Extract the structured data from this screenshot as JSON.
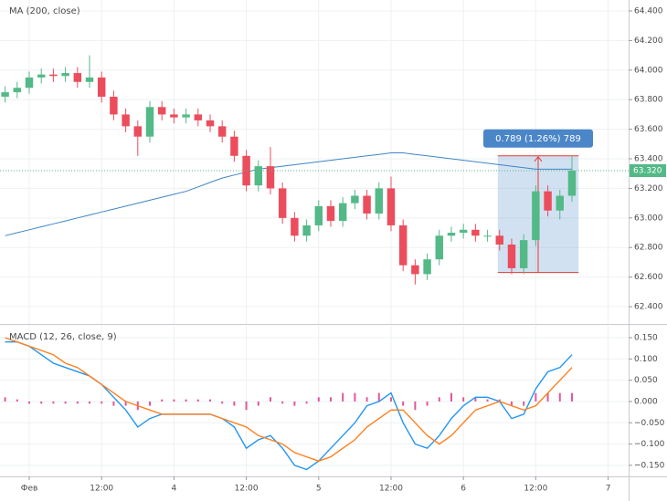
{
  "chart_data": [
    {
      "type": "candlestick",
      "title": "MA (200, close)",
      "x": [
        -4,
        -2,
        0,
        2,
        4,
        6,
        8,
        10,
        12,
        14,
        16,
        18,
        20,
        22,
        24,
        26,
        28,
        30,
        32,
        34,
        36,
        38,
        40,
        42,
        44,
        46,
        48,
        50,
        52,
        54,
        56,
        58,
        60,
        62,
        64,
        66,
        68,
        70,
        72,
        74,
        76,
        78,
        80,
        82,
        84,
        86,
        88,
        90
      ],
      "open": [
        63.82,
        63.85,
        63.88,
        63.95,
        63.97,
        63.96,
        63.98,
        63.92,
        63.95,
        63.82,
        63.7,
        63.62,
        63.55,
        63.75,
        63.7,
        63.68,
        63.7,
        63.66,
        63.62,
        63.55,
        63.42,
        63.22,
        63.35,
        63.2,
        63.0,
        62.88,
        62.95,
        63.08,
        62.98,
        63.1,
        63.15,
        63.03,
        63.2,
        62.95,
        62.68,
        62.62,
        62.72,
        62.88,
        62.9,
        62.92,
        62.88,
        62.88,
        62.82,
        62.66,
        62.85,
        63.18,
        63.05,
        63.15
      ],
      "high": [
        63.89,
        63.92,
        63.99,
        64.01,
        64.01,
        64.02,
        64.02,
        64.1,
        63.99,
        63.86,
        63.74,
        63.66,
        63.79,
        63.79,
        63.74,
        63.74,
        63.74,
        63.7,
        63.66,
        63.59,
        63.46,
        63.39,
        63.48,
        63.24,
        63.04,
        62.99,
        63.12,
        63.12,
        63.14,
        63.19,
        63.19,
        63.24,
        63.28,
        62.99,
        62.72,
        62.76,
        62.92,
        62.94,
        62.96,
        62.96,
        62.92,
        62.92,
        62.86,
        62.89,
        63.22,
        63.22,
        63.19,
        63.42
      ],
      "low": [
        63.78,
        63.81,
        63.84,
        63.91,
        63.92,
        63.92,
        63.88,
        63.88,
        63.78,
        63.66,
        63.58,
        63.42,
        63.51,
        63.66,
        63.64,
        63.64,
        63.62,
        63.58,
        63.51,
        63.38,
        63.18,
        63.18,
        63.16,
        62.96,
        62.84,
        62.84,
        62.91,
        62.94,
        62.94,
        63.06,
        62.99,
        62.99,
        62.91,
        62.64,
        62.55,
        62.58,
        62.68,
        62.84,
        62.86,
        62.84,
        62.84,
        62.78,
        62.62,
        62.62,
        62.81,
        63.01,
        62.99,
        63.11
      ],
      "close": [
        63.85,
        63.88,
        63.95,
        63.97,
        63.96,
        63.98,
        63.92,
        63.95,
        63.82,
        63.7,
        63.62,
        63.55,
        63.75,
        63.7,
        63.68,
        63.7,
        63.66,
        63.62,
        63.55,
        63.42,
        63.22,
        63.35,
        63.2,
        63.0,
        62.88,
        62.95,
        63.08,
        62.98,
        63.1,
        63.15,
        63.03,
        63.2,
        62.95,
        62.68,
        62.62,
        62.72,
        62.88,
        62.9,
        62.92,
        62.88,
        62.88,
        62.82,
        62.66,
        62.85,
        63.18,
        63.05,
        63.15,
        63.32
      ],
      "up_color": "#53b987",
      "down_color": "#eb4d5c",
      "overlay": {
        "color": "#3d85c6",
        "values": [
          62.88,
          62.9,
          62.92,
          62.94,
          62.96,
          62.98,
          63.0,
          63.02,
          63.04,
          63.06,
          63.08,
          63.1,
          63.12,
          63.14,
          63.16,
          63.18,
          63.21,
          63.24,
          63.27,
          63.29,
          63.31,
          63.33,
          63.34,
          63.35,
          63.36,
          63.37,
          63.38,
          63.39,
          63.4,
          63.41,
          63.42,
          63.43,
          63.44,
          63.44,
          63.43,
          63.42,
          63.41,
          63.4,
          63.39,
          63.38,
          63.37,
          63.36,
          63.35,
          63.34,
          63.33,
          63.33,
          63.33,
          63.33
        ]
      },
      "xlim": [
        -4.85,
        99.4
      ],
      "ylim": [
        62.283,
        64.474
      ],
      "yticks": [
        {
          "value": 62.4,
          "label": "62.400"
        },
        {
          "value": 62.6,
          "label": "62.600"
        },
        {
          "value": 62.8,
          "label": "62.800"
        },
        {
          "value": 63.0,
          "label": "63.000"
        },
        {
          "value": 63.2,
          "label": "63.200"
        },
        {
          "value": 63.4,
          "label": "63.400"
        },
        {
          "value": 63.6,
          "label": "63.600"
        },
        {
          "value": 63.8,
          "label": "63.800"
        },
        {
          "value": 64.0,
          "label": "64.000"
        },
        {
          "value": 64.2,
          "label": "64.200"
        },
        {
          "value": 64.4,
          "label": "64.400"
        }
      ],
      "last_price": {
        "value": 63.32,
        "label": "63.320"
      },
      "measure": {
        "start": 77.7,
        "end": 91.1,
        "low": 62.631,
        "high": 63.42,
        "label": "0.789 (1.26%) 789",
        "color": "#4a86c8"
      },
      "grid": true
    },
    {
      "type": "macd",
      "title": "MACD (12, 26, close, 9)",
      "x": [
        -4,
        -2,
        0,
        2,
        4,
        6,
        8,
        10,
        12,
        14,
        16,
        18,
        20,
        22,
        24,
        26,
        28,
        30,
        32,
        34,
        36,
        38,
        40,
        42,
        44,
        46,
        48,
        50,
        52,
        54,
        56,
        58,
        60,
        62,
        64,
        66,
        68,
        70,
        72,
        74,
        76,
        78,
        80,
        82,
        84,
        86,
        88,
        90
      ],
      "series": [
        {
          "style": "histogram",
          "color": "#e0579b",
          "values": [
            0.01,
            0.005,
            -0.005,
            -0.005,
            -0.005,
            -0.005,
            -0.005,
            -0.005,
            -0.005,
            -0.01,
            -0.01,
            -0.02,
            -0.01,
            0.005,
            0.005,
            0.005,
            0.005,
            0.005,
            -0.005,
            -0.01,
            -0.02,
            -0.01,
            0.01,
            -0.005,
            -0.01,
            -0.005,
            0.01,
            0.01,
            0.02,
            0.02,
            0.01,
            0.02,
            0.01,
            -0.01,
            -0.02,
            -0.01,
            0.01,
            0.02,
            0.01,
            0.01,
            0.005,
            0.005,
            -0.01,
            -0.01,
            0.02,
            0.02,
            0.02,
            0.02
          ]
        },
        {
          "style": "line",
          "color": "#2196f3",
          "values": [
            0.14,
            0.14,
            0.13,
            0.11,
            0.09,
            0.08,
            0.07,
            0.06,
            0.04,
            0.01,
            -0.02,
            -0.06,
            -0.04,
            -0.03,
            -0.03,
            -0.03,
            -0.03,
            -0.03,
            -0.04,
            -0.06,
            -0.11,
            -0.09,
            -0.08,
            -0.11,
            -0.15,
            -0.16,
            -0.14,
            -0.11,
            -0.08,
            -0.05,
            -0.01,
            0.0,
            0.02,
            -0.05,
            -0.1,
            -0.11,
            -0.08,
            -0.04,
            -0.01,
            0.01,
            0.01,
            0.0,
            -0.04,
            -0.03,
            0.03,
            0.07,
            0.08,
            0.11
          ]
        },
        {
          "style": "line",
          "color": "#ff7f1e",
          "values": [
            0.15,
            0.14,
            0.13,
            0.12,
            0.11,
            0.09,
            0.08,
            0.06,
            0.04,
            0.02,
            0.0,
            -0.01,
            -0.02,
            -0.03,
            -0.03,
            -0.03,
            -0.03,
            -0.03,
            -0.04,
            -0.05,
            -0.06,
            -0.08,
            -0.09,
            -0.1,
            -0.12,
            -0.13,
            -0.14,
            -0.13,
            -0.11,
            -0.09,
            -0.06,
            -0.04,
            -0.02,
            -0.02,
            -0.05,
            -0.08,
            -0.1,
            -0.08,
            -0.05,
            -0.02,
            -0.01,
            0.0,
            -0.01,
            -0.02,
            -0.01,
            0.02,
            0.05,
            0.08
          ]
        }
      ],
      "xlim": [
        -4.85,
        99.4
      ],
      "ylim": [
        -0.176,
        0.178
      ],
      "xticks": [
        {
          "value": 0,
          "label": "Фев"
        },
        {
          "value": 12,
          "label": "12:00"
        },
        {
          "value": 24,
          "label": "4"
        },
        {
          "value": 36,
          "label": "12:00"
        },
        {
          "value": 48,
          "label": "5"
        },
        {
          "value": 60,
          "label": "12:00"
        },
        {
          "value": 72,
          "label": "6"
        },
        {
          "value": 84,
          "label": "12:00"
        },
        {
          "value": 96,
          "label": "7"
        }
      ],
      "yticks": [
        {
          "value": -0.15,
          "label": "−0.150"
        },
        {
          "value": -0.1,
          "label": "−0.100"
        },
        {
          "value": -0.05,
          "label": "−0.050"
        },
        {
          "value": 0,
          "label": "0.000"
        },
        {
          "value": 0.05,
          "label": "0.050"
        },
        {
          "value": 0.1,
          "label": "0.100"
        },
        {
          "value": 0.15,
          "label": "0.150"
        }
      ],
      "grid": true
    }
  ]
}
